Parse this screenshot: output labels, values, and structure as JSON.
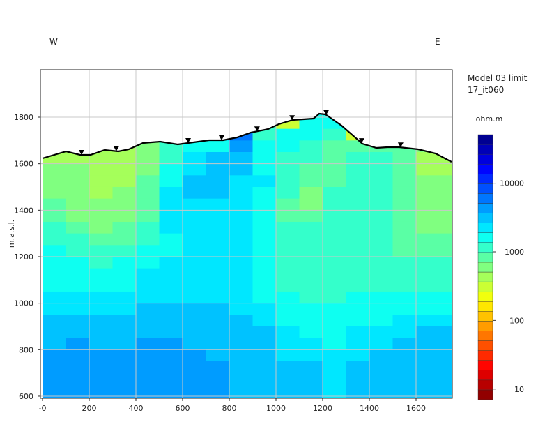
{
  "chart_data": {
    "type": "heatmap",
    "direction_left": "W",
    "direction_right": "E",
    "ylabel": "m.a.s.l.",
    "xlabel": "",
    "xlim": [
      0,
      1752
    ],
    "ylim": [
      591,
      2004
    ],
    "x_ticks": [
      {
        "v": 0,
        "label": "-0"
      },
      {
        "v": 200,
        "label": "200"
      },
      {
        "v": 400,
        "label": "400"
      },
      {
        "v": 600,
        "label": "600"
      },
      {
        "v": 800,
        "label": "800"
      },
      {
        "v": 1000,
        "label": "1000"
      },
      {
        "v": 1200,
        "label": "1200"
      },
      {
        "v": 1400,
        "label": "1400"
      },
      {
        "v": 1600,
        "label": "1600"
      }
    ],
    "y_ticks": [
      {
        "v": 600,
        "label": "600"
      },
      {
        "v": 800,
        "label": "800"
      },
      {
        "v": 1000,
        "label": "1000"
      },
      {
        "v": 1200,
        "label": "1200"
      },
      {
        "v": 1400,
        "label": "1400"
      },
      {
        "v": 1600,
        "label": "1600"
      },
      {
        "v": 1800,
        "label": "1800"
      }
    ],
    "grid": true,
    "legend": {
      "title_line1": "Model 03 limit",
      "title_line2": "17_it060",
      "unit": "ohm.m",
      "placement": "right",
      "scale": "log",
      "range": [
        7,
        51000
      ],
      "bands": 27,
      "ticks": [
        {
          "v": 10,
          "label": "10"
        },
        {
          "v": 100,
          "label": "100"
        },
        {
          "v": 1000,
          "label": "1000"
        },
        {
          "v": 10000,
          "label": "10000"
        }
      ]
    },
    "cell_width_m": 100,
    "cell_height_m": 50,
    "x_centers": [
      50,
      150,
      250,
      350,
      450,
      550,
      650,
      750,
      850,
      950,
      1050,
      1150,
      1250,
      1350,
      1450,
      1550,
      1650,
      1750
    ],
    "elevation_centers": [
      1825,
      1775,
      1725,
      1675,
      1625,
      1575,
      1525,
      1475,
      1425,
      1375,
      1325,
      1275,
      1225,
      1175,
      1125,
      1075,
      1025,
      975,
      925,
      875,
      825,
      775,
      725,
      675,
      625
    ],
    "resistivity_columns": [
      [
        500,
        500,
        500,
        500,
        500,
        700,
        700,
        700,
        850,
        850,
        1000,
        1000,
        1400,
        1400,
        1400,
        1400,
        2000,
        2000,
        3000,
        3000,
        3000,
        5000,
        5000,
        5000,
        5000
      ],
      [
        500,
        500,
        500,
        500,
        500,
        700,
        700,
        700,
        700,
        700,
        850,
        1000,
        1000,
        1400,
        1400,
        1400,
        2000,
        2000,
        3000,
        3000,
        5000,
        5000,
        5000,
        5000,
        5000
      ],
      [
        500,
        500,
        500,
        500,
        500,
        500,
        500,
        500,
        700,
        700,
        700,
        850,
        1000,
        1000,
        1400,
        1400,
        2000,
        2000,
        3000,
        3000,
        3000,
        5000,
        5000,
        5000,
        5000
      ],
      [
        500,
        500,
        500,
        500,
        500,
        500,
        500,
        700,
        700,
        700,
        850,
        850,
        1000,
        1400,
        1400,
        1400,
        2000,
        2000,
        3000,
        3000,
        3000,
        5000,
        5000,
        5000,
        5000
      ],
      [
        700,
        700,
        700,
        700,
        700,
        700,
        850,
        850,
        850,
        850,
        1000,
        1000,
        1400,
        1400,
        2000,
        2000,
        2000,
        3000,
        3000,
        3000,
        5000,
        5000,
        5000,
        5000,
        5000
      ],
      [
        1000,
        1000,
        1000,
        1000,
        1000,
        1400,
        1400,
        2000,
        2000,
        2000,
        2000,
        1400,
        1400,
        2000,
        2000,
        2000,
        2000,
        3000,
        3000,
        3000,
        5000,
        5000,
        5000,
        5000,
        5000
      ],
      [
        1400,
        1400,
        1400,
        1400,
        2000,
        2000,
        3000,
        3000,
        2000,
        2000,
        2000,
        2000,
        2000,
        2000,
        2000,
        2000,
        2000,
        3000,
        3000,
        3000,
        3000,
        5000,
        5000,
        5000,
        5000
      ],
      [
        3000,
        3000,
        3000,
        1400,
        3000,
        3000,
        3000,
        3000,
        2000,
        2000,
        2000,
        2000,
        2000,
        2000,
        2000,
        2000,
        2000,
        3000,
        3000,
        3000,
        3000,
        3000,
        5000,
        5000,
        5000
      ],
      [
        7000,
        7000,
        7000,
        5000,
        3000,
        3000,
        2000,
        2000,
        2000,
        2000,
        2000,
        2000,
        2000,
        2000,
        2000,
        2000,
        2000,
        2000,
        3000,
        3000,
        3000,
        3000,
        3000,
        3000,
        3000
      ],
      [
        1000,
        1000,
        1000,
        1400,
        1400,
        1400,
        2000,
        1400,
        1400,
        1400,
        1400,
        1400,
        1400,
        1400,
        1400,
        1400,
        1400,
        2000,
        2000,
        3000,
        3000,
        3000,
        3000,
        3000,
        3000
      ],
      [
        300,
        300,
        1400,
        1400,
        1000,
        1000,
        1000,
        1000,
        850,
        850,
        1000,
        1000,
        1000,
        1000,
        1000,
        1000,
        1400,
        1400,
        1400,
        2000,
        2000,
        2000,
        3000,
        3000,
        3000
      ],
      [
        1400,
        1400,
        1400,
        1000,
        1000,
        850,
        850,
        700,
        700,
        850,
        1000,
        1000,
        1000,
        1000,
        1000,
        1000,
        1000,
        1400,
        1400,
        1400,
        2000,
        2000,
        3000,
        3000,
        3000
      ],
      [
        1400,
        1400,
        1000,
        850,
        850,
        850,
        850,
        1000,
        1000,
        1000,
        1000,
        1000,
        1000,
        1000,
        1000,
        1000,
        1000,
        1400,
        1400,
        1400,
        1400,
        2000,
        2000,
        2000,
        2000
      ],
      [
        300,
        300,
        300,
        850,
        1000,
        1000,
        1000,
        1000,
        1000,
        1000,
        1000,
        1000,
        1000,
        1000,
        1000,
        1000,
        1400,
        1400,
        1400,
        2000,
        2000,
        2000,
        3000,
        3000,
        3000
      ],
      [
        850,
        850,
        850,
        850,
        1000,
        1000,
        1000,
        1000,
        1000,
        1000,
        1000,
        1000,
        1000,
        1000,
        1000,
        1000,
        1400,
        1400,
        1400,
        2000,
        2000,
        3000,
        3000,
        3000,
        3000
      ],
      [
        850,
        850,
        850,
        850,
        850,
        850,
        850,
        850,
        850,
        850,
        850,
        850,
        850,
        1000,
        1000,
        1000,
        1400,
        1400,
        2000,
        2000,
        3000,
        3000,
        3000,
        3000,
        3000
      ],
      [
        700,
        700,
        700,
        700,
        500,
        500,
        700,
        700,
        700,
        700,
        700,
        850,
        850,
        1000,
        1000,
        1000,
        1400,
        1400,
        2000,
        3000,
        3000,
        3000,
        3000,
        3000,
        3000
      ],
      [
        700,
        700,
        700,
        700,
        500,
        500,
        700,
        700,
        700,
        700,
        700,
        850,
        850,
        1000,
        1000,
        1000,
        1400,
        1400,
        2000,
        3000,
        3000,
        3000,
        3000,
        3000,
        3000
      ]
    ],
    "topography": [
      [
        0,
        1623
      ],
      [
        101,
        1653
      ],
      [
        161,
        1638
      ],
      [
        206,
        1638
      ],
      [
        266,
        1659
      ],
      [
        325,
        1653
      ],
      [
        370,
        1662
      ],
      [
        430,
        1689
      ],
      [
        504,
        1695
      ],
      [
        579,
        1683
      ],
      [
        624,
        1689
      ],
      [
        713,
        1701
      ],
      [
        773,
        1701
      ],
      [
        833,
        1713
      ],
      [
        893,
        1734
      ],
      [
        967,
        1749
      ],
      [
        1012,
        1770
      ],
      [
        1072,
        1788
      ],
      [
        1161,
        1794
      ],
      [
        1185,
        1815
      ],
      [
        1212,
        1812
      ],
      [
        1281,
        1764
      ],
      [
        1370,
        1686
      ],
      [
        1430,
        1668
      ],
      [
        1478,
        1671
      ],
      [
        1528,
        1671
      ],
      [
        1609,
        1662
      ],
      [
        1684,
        1644
      ],
      [
        1752,
        1608
      ]
    ],
    "electrodes_x": [
      167,
      316,
      624,
      767,
      919,
      1069,
      1215,
      1367,
      1534
    ]
  }
}
